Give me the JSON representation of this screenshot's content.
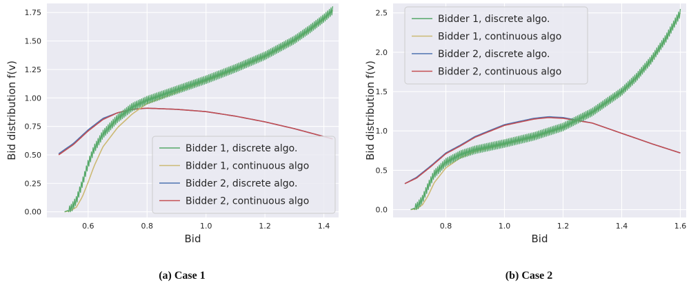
{
  "chart_data": [
    {
      "type": "line",
      "xlabel": "Bid",
      "ylabel": "Bid distribution f(v)",
      "xlim": [
        0.46,
        1.45
      ],
      "ylim": [
        -0.05,
        1.83
      ],
      "xticks": [
        0.6,
        0.8,
        1.0,
        1.2,
        1.4
      ],
      "xtick_labels": [
        "0.6",
        "0.8",
        "1.0",
        "1.2",
        "1.4"
      ],
      "yticks": [
        0.0,
        0.25,
        0.5,
        0.75,
        1.0,
        1.25,
        1.5,
        1.75
      ],
      "ytick_labels": [
        "0.00",
        "0.25",
        "0.50",
        "0.75",
        "1.00",
        "1.25",
        "1.50",
        "1.75"
      ],
      "grid": true,
      "legend_placement": "lower-right",
      "caption": "(a) Case 1",
      "series": [
        {
          "name": "Bidder 1, discrete algo.",
          "color": "#55a868",
          "x": [
            0.52,
            0.54,
            0.56,
            0.58,
            0.6,
            0.62,
            0.65,
            0.7,
            0.75,
            0.8,
            0.9,
            1.0,
            1.1,
            1.2,
            1.3,
            1.35,
            1.4,
            1.43
          ],
          "y": [
            0.0,
            0.02,
            0.1,
            0.25,
            0.42,
            0.55,
            0.68,
            0.82,
            0.92,
            0.98,
            1.07,
            1.16,
            1.26,
            1.37,
            1.51,
            1.6,
            1.7,
            1.77
          ]
        },
        {
          "name": "Bidder 1, continuous algo",
          "color": "#ccb974",
          "x": [
            0.52,
            0.54,
            0.56,
            0.58,
            0.6,
            0.62,
            0.65,
            0.7,
            0.75,
            0.8,
            0.9,
            1.0,
            1.1,
            1.2,
            1.3,
            1.35,
            1.4,
            1.43
          ],
          "y": [
            0.0,
            0.01,
            0.04,
            0.13,
            0.26,
            0.4,
            0.57,
            0.74,
            0.86,
            0.95,
            1.05,
            1.15,
            1.25,
            1.36,
            1.5,
            1.59,
            1.69,
            1.77
          ]
        },
        {
          "name": "Bidder 2, discrete algo.",
          "color": "#4c72b0",
          "x": [
            0.5,
            0.55,
            0.6,
            0.65,
            0.7,
            0.75,
            0.8,
            0.9,
            1.0,
            1.1,
            1.2,
            1.3,
            1.43
          ],
          "y": [
            0.51,
            0.6,
            0.72,
            0.82,
            0.87,
            0.9,
            0.91,
            0.9,
            0.88,
            0.84,
            0.79,
            0.73,
            0.64
          ]
        },
        {
          "name": "Bidder 2, continuous algo",
          "color": "#c44e52",
          "x": [
            0.5,
            0.55,
            0.6,
            0.65,
            0.7,
            0.75,
            0.8,
            0.9,
            1.0,
            1.1,
            1.2,
            1.3,
            1.43
          ],
          "y": [
            0.5,
            0.59,
            0.71,
            0.81,
            0.87,
            0.9,
            0.91,
            0.9,
            0.88,
            0.84,
            0.79,
            0.73,
            0.64
          ]
        }
      ]
    },
    {
      "type": "line",
      "xlabel": "Bid",
      "ylabel": "Bid distribution f(v)",
      "xlim": [
        0.62,
        1.62
      ],
      "ylim": [
        -0.1,
        2.62
      ],
      "xticks": [
        0.8,
        1.0,
        1.2,
        1.4,
        1.6
      ],
      "xtick_labels": [
        "0.8",
        "1.0",
        "1.2",
        "1.4",
        "1.6"
      ],
      "yticks": [
        0.0,
        0.5,
        1.0,
        1.5,
        2.0,
        2.5
      ],
      "ytick_labels": [
        "0.0",
        "0.5",
        "1.0",
        "1.5",
        "2.0",
        "2.5"
      ],
      "grid": true,
      "legend_placement": "upper-left",
      "caption": "(b) Case 2",
      "series": [
        {
          "name": "Bidder 1, discrete algo.",
          "color": "#55a868",
          "x": [
            0.68,
            0.7,
            0.72,
            0.74,
            0.76,
            0.8,
            0.85,
            0.9,
            1.0,
            1.1,
            1.2,
            1.3,
            1.4,
            1.45,
            1.5,
            1.55,
            1.6
          ],
          "y": [
            0.0,
            0.03,
            0.13,
            0.3,
            0.45,
            0.6,
            0.7,
            0.76,
            0.84,
            0.93,
            1.05,
            1.24,
            1.5,
            1.68,
            1.9,
            2.17,
            2.5
          ]
        },
        {
          "name": "Bidder 1, continuous algo",
          "color": "#ccb974",
          "x": [
            0.68,
            0.7,
            0.72,
            0.74,
            0.76,
            0.8,
            0.85,
            0.9,
            1.0,
            1.1,
            1.2,
            1.3,
            1.4,
            1.45,
            1.5,
            1.55,
            1.6
          ],
          "y": [
            0.0,
            0.01,
            0.06,
            0.18,
            0.34,
            0.53,
            0.66,
            0.74,
            0.83,
            0.92,
            1.04,
            1.23,
            1.49,
            1.67,
            1.89,
            2.16,
            2.5
          ]
        },
        {
          "name": "Bidder 2, discrete algo.",
          "color": "#4c72b0",
          "x": [
            0.66,
            0.7,
            0.75,
            0.8,
            0.85,
            0.9,
            1.0,
            1.1,
            1.15,
            1.2,
            1.3,
            1.4,
            1.5,
            1.6
          ],
          "y": [
            0.33,
            0.41,
            0.56,
            0.72,
            0.82,
            0.93,
            1.08,
            1.16,
            1.18,
            1.17,
            1.1,
            0.97,
            0.84,
            0.72
          ]
        },
        {
          "name": "Bidder 2, continuous algo",
          "color": "#c44e52",
          "x": [
            0.66,
            0.7,
            0.75,
            0.8,
            0.85,
            0.9,
            1.0,
            1.1,
            1.15,
            1.2,
            1.3,
            1.4,
            1.5,
            1.6
          ],
          "y": [
            0.33,
            0.4,
            0.55,
            0.71,
            0.81,
            0.92,
            1.07,
            1.15,
            1.17,
            1.16,
            1.1,
            0.97,
            0.84,
            0.72
          ]
        }
      ]
    }
  ]
}
